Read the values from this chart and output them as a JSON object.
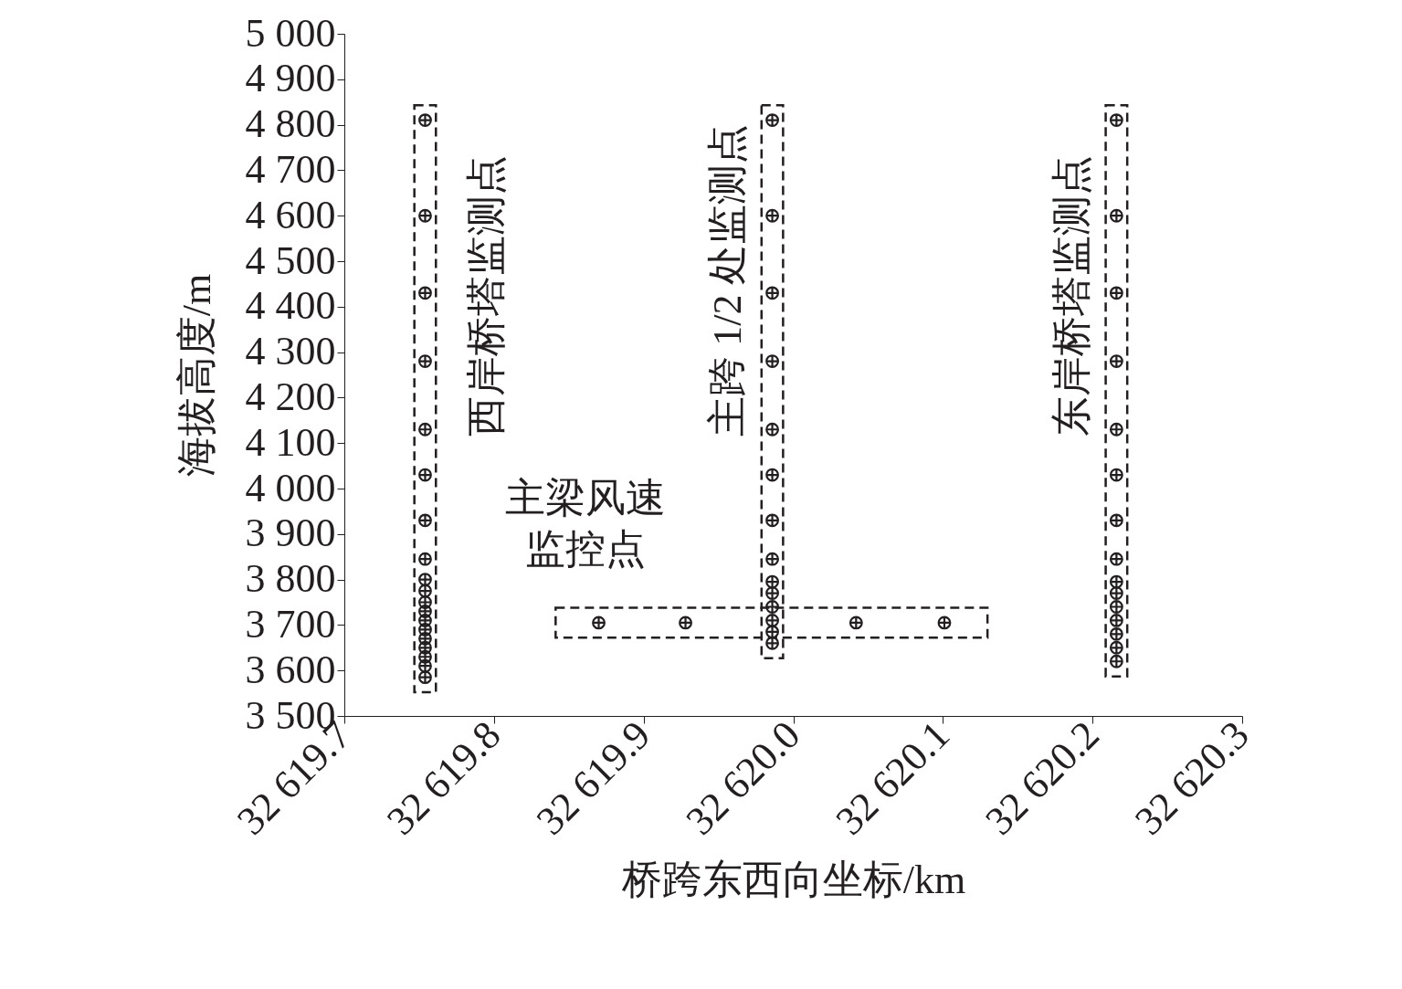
{
  "chart_data": {
    "type": "scatter",
    "xlabel": "桥跨东西向坐标/km",
    "ylabel": "海拔高度/m",
    "series": [
      {
        "color": "#231f20",
        "x": [
          32619.754,
          32619.754,
          32619.754,
          32619.754,
          32619.754,
          32619.754,
          32619.754,
          32619.754,
          32619.754,
          32619.754,
          32619.754,
          32619.754,
          32619.754,
          32619.754,
          32619.754,
          32619.754,
          32619.754,
          32619.754,
          32619.754
        ],
        "values": [
          4810,
          4600,
          4430,
          4280,
          4130,
          4030,
          3930,
          3845,
          3800,
          3775,
          3750,
          3730,
          3710,
          3690,
          3670,
          3650,
          3630,
          3610,
          3585
        ]
      },
      {
        "color": "#231f20",
        "x": [
          32619.986,
          32619.986,
          32619.986,
          32619.986,
          32619.986,
          32619.986,
          32619.986,
          32619.986,
          32619.986,
          32619.986,
          32619.986,
          32619.986,
          32619.986,
          32619.986
        ],
        "values": [
          4810,
          4600,
          4430,
          4280,
          4130,
          4030,
          3930,
          3845,
          3795,
          3770,
          3740,
          3710,
          3685,
          3660
        ]
      },
      {
        "color": "#231f20",
        "x": [
          32620.216,
          32620.216,
          32620.216,
          32620.216,
          32620.216,
          32620.216,
          32620.216,
          32620.216,
          32620.216,
          32620.216,
          32620.216,
          32620.216,
          32620.216,
          32620.216,
          32620.216
        ],
        "values": [
          4810,
          4600,
          4430,
          4280,
          4130,
          4030,
          3930,
          3845,
          3795,
          3770,
          3740,
          3710,
          3680,
          3650,
          3620
        ]
      },
      {
        "color": "#231f20",
        "x": [
          32619.87,
          32619.928,
          32620.042,
          32620.101
        ],
        "values": [
          3705,
          3705,
          3705,
          3705
        ]
      }
    ],
    "annotations": [
      "西岸桥塔监测点",
      "主跨 1/2 处监测点",
      "东岸桥塔监测点",
      "主梁风速监控点"
    ],
    "xlim": [
      32619.7,
      32620.3
    ],
    "xticks": [
      {
        "value": 32619.7,
        "label": "32 619.7"
      },
      {
        "value": 32619.8,
        "label": "32 619.8"
      },
      {
        "value": 32619.9,
        "label": "32 619.9"
      },
      {
        "value": 32620.0,
        "label": "32 620.0"
      },
      {
        "value": 32620.1,
        "label": "32 620.1"
      },
      {
        "value": 32620.2,
        "label": "32 620.2"
      },
      {
        "value": 32620.3,
        "label": "32 620.3"
      }
    ],
    "ylim": [
      3500,
      5000
    ],
    "yticks": [
      {
        "value": 3500,
        "label": "3 500"
      },
      {
        "value": 3600,
        "label": "3 600"
      },
      {
        "value": 3700,
        "label": "3 700"
      },
      {
        "value": 3800,
        "label": "3 800"
      },
      {
        "value": 3900,
        "label": "3 900"
      },
      {
        "value": 4000,
        "label": "4 000"
      },
      {
        "value": 4100,
        "label": "4 100"
      },
      {
        "value": 4200,
        "label": "4 200"
      },
      {
        "value": 4300,
        "label": "4 300"
      },
      {
        "value": 4400,
        "label": "4 400"
      },
      {
        "value": 4500,
        "label": "4 500"
      },
      {
        "value": 4600,
        "label": "4 600"
      },
      {
        "value": 4700,
        "label": "4 700"
      },
      {
        "value": 4800,
        "label": "4 800"
      },
      {
        "value": 4900,
        "label": "4 900"
      },
      {
        "value": 5000,
        "label": "5 000"
      }
    ],
    "grid": false,
    "marker": "cross"
  }
}
